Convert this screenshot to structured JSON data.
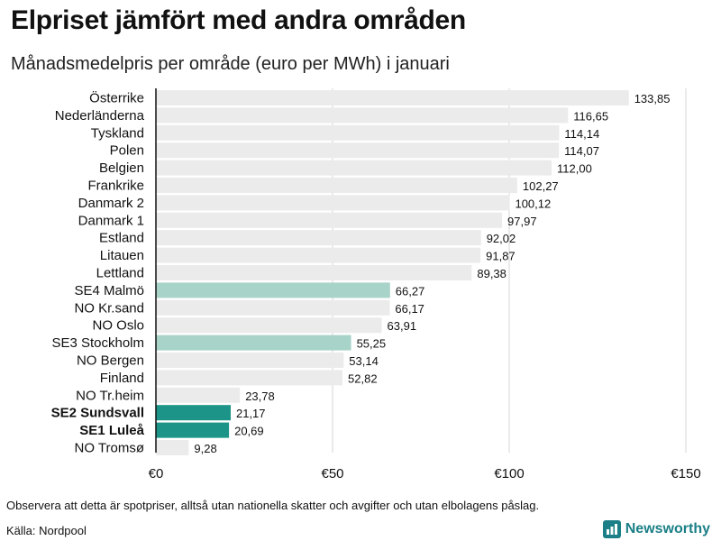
{
  "chart_data": {
    "type": "bar",
    "orientation": "horizontal",
    "title": "Elpriset jämfört med andra områden",
    "subtitle": "Månadsmedelpris per område (euro per MWh) i januari",
    "categories": [
      "Österrike",
      "Nederländerna",
      "Tyskland",
      "Polen",
      "Belgien",
      "Frankrike",
      "Danmark  2",
      "Danmark  1",
      "Estland",
      "Litauen",
      "Lettland",
      "SE4  Malmö",
      "NO Kr.sand",
      "NO Oslo",
      "SE3  Stockholm",
      "NO Bergen",
      "Finland",
      "NO Tr.heim",
      "SE2 Sundsvall",
      "SE1 Luleå",
      "NO Tromsø"
    ],
    "values": [
      133.85,
      116.65,
      114.14,
      114.07,
      112.0,
      102.27,
      100.12,
      97.97,
      92.02,
      91.87,
      89.38,
      66.27,
      66.17,
      63.91,
      55.25,
      53.14,
      52.82,
      23.78,
      21.17,
      20.69,
      9.28
    ],
    "value_labels": [
      "133,85",
      "116,65",
      "114,14",
      "114,07",
      "112,00",
      "102,27",
      "100,12",
      "97,97",
      "92,02",
      "91,87",
      "89,38",
      "66,27",
      "66,17",
      "63,91",
      "55,25",
      "53,14",
      "52,82",
      "23,78",
      "21,17",
      "20,69",
      "9,28"
    ],
    "highlight": [
      "none",
      "none",
      "none",
      "none",
      "none",
      "none",
      "none",
      "none",
      "none",
      "none",
      "none",
      "light",
      "none",
      "none",
      "light",
      "none",
      "none",
      "none",
      "dark",
      "dark",
      "none"
    ],
    "bold_labels": [
      "SE2 Sundsvall",
      "SE1 Luleå"
    ],
    "xlim": [
      0,
      150
    ],
    "xticks": [
      0,
      50,
      100,
      150
    ],
    "xtick_labels": [
      "€0",
      "€50",
      "€100",
      "€150"
    ],
    "xlabel": "",
    "ylabel": "",
    "grid": true,
    "colors": {
      "default": "#ebebeb",
      "light": "#a8d3c9",
      "dark": "#1c9487",
      "grid": "#d4d4d4",
      "axis": "#111111"
    }
  },
  "footer": {
    "note": "Observera att detta är spotpriser, alltså utan nationella skatter och avgifter och utan elbolagens påslag.",
    "source": "Källa: Nordpool",
    "brand": "Newsworthy",
    "brand_icon": "newsworthy-logo-icon",
    "brand_color": "#1a7f86"
  }
}
